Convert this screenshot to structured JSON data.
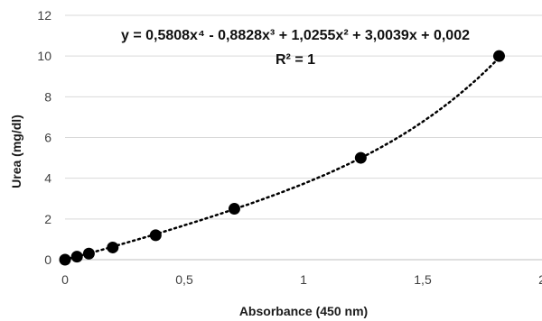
{
  "chart_data": {
    "type": "scatter",
    "xlabel": "Absorbance (450 nm)",
    "ylabel": "Urea (mg/dl)",
    "xlim": [
      0,
      2
    ],
    "ylim": [
      0,
      12
    ],
    "x_ticks": [
      "0",
      "0,5",
      "1",
      "1,5",
      "2"
    ],
    "y_ticks": [
      "0",
      "2",
      "4",
      "6",
      "8",
      "10",
      "12"
    ],
    "grid": "horizontal",
    "series": [
      {
        "values": [
          {
            "x": 0,
            "y": 0
          },
          {
            "x": 0.05,
            "y": 0.15
          },
          {
            "x": 0.1,
            "y": 0.3
          },
          {
            "x": 0.2,
            "y": 0.6
          },
          {
            "x": 0.38,
            "y": 1.2
          },
          {
            "x": 0.71,
            "y": 2.5
          },
          {
            "x": 1.24,
            "y": 5.0
          },
          {
            "x": 1.82,
            "y": 10.0
          }
        ]
      }
    ],
    "trendline": {
      "type": "polynomial",
      "coefficients": [
        0.5808,
        -0.8828,
        1.0255,
        3.0039,
        0.002
      ],
      "style": "dotted",
      "equation": "y = 0,5808x⁴ - 0,8828x³ + 1,0255x² + 3,0039x + 0,002",
      "r_squared": "R² = 1"
    },
    "colors": {
      "points": "#000000",
      "grid": "#d9d9d9",
      "axis": "#bfbfbf"
    }
  }
}
